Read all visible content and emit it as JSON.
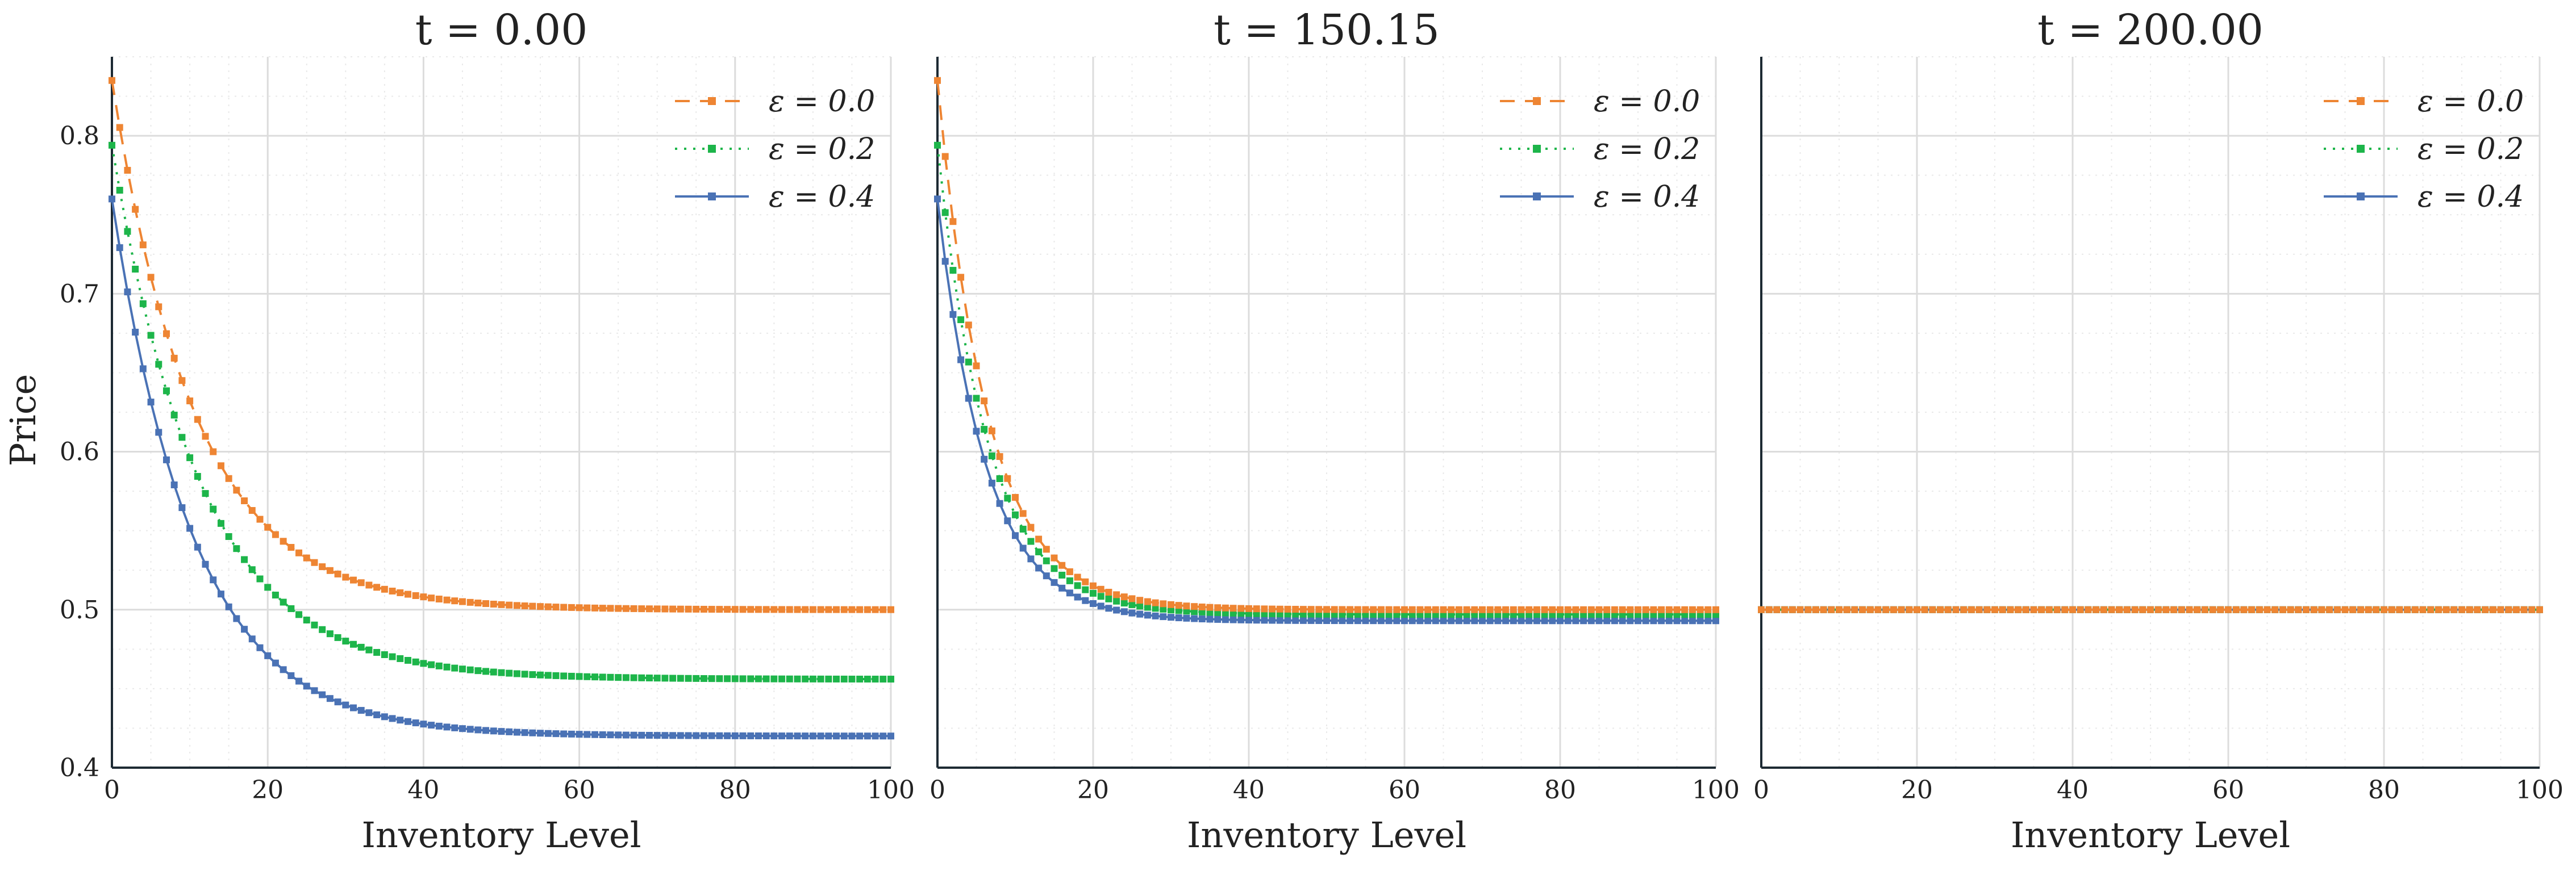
{
  "figure": {
    "ylabel": "Price",
    "colors": {
      "eps_0.0": "#ee8533",
      "eps_0.2": "#1db54a",
      "eps_0.4": "#4a72b5",
      "grid": "#dcdcdc",
      "axis": "#1d2a33"
    }
  },
  "chart_data": [
    {
      "type": "line",
      "title": "t = 0.00",
      "xlabel": "Inventory Level",
      "ylabel": "Price",
      "xlim": [
        0,
        100
      ],
      "ylim": [
        0.4,
        0.85
      ],
      "xticks": [
        "0",
        "20",
        "40",
        "60",
        "80",
        "100"
      ],
      "yticks": [
        "0.4",
        "0.5",
        "0.6",
        "0.7",
        "0.8"
      ],
      "grid": true,
      "legend_position": "top-right",
      "series": [
        {
          "name": "ε = 0.0",
          "style": "dashed",
          "color": "#ee8533",
          "model": {
            "base": 0.5,
            "amp": 0.335,
            "decay": 0.093
          }
        },
        {
          "name": "ε = 0.2",
          "style": "dotted",
          "color": "#1db54a",
          "model": {
            "base": 0.456,
            "amp": 0.338,
            "decay": 0.088
          }
        },
        {
          "name": "ε = 0.4",
          "style": "solid",
          "color": "#4a72b5",
          "model": {
            "base": 0.42,
            "amp": 0.34,
            "decay": 0.095
          }
        }
      ]
    },
    {
      "type": "line",
      "title": "t = 150.15",
      "xlabel": "Inventory Level",
      "ylabel": "",
      "xlim": [
        0,
        100
      ],
      "ylim": [
        0.4,
        0.85
      ],
      "xticks": [
        "0",
        "20",
        "40",
        "60",
        "80",
        "100"
      ],
      "yticks": [],
      "grid": true,
      "legend_position": "top-right",
      "series": [
        {
          "name": "ε = 0.0",
          "style": "dashed",
          "color": "#ee8533",
          "model": {
            "base": 0.5,
            "amp": 0.335,
            "decay": 0.155
          }
        },
        {
          "name": "ε = 0.2",
          "style": "dotted",
          "color": "#1db54a",
          "model": {
            "base": 0.497,
            "amp": 0.297,
            "decay": 0.155
          }
        },
        {
          "name": "ε = 0.4",
          "style": "solid",
          "color": "#4a72b5",
          "model": {
            "base": 0.493,
            "amp": 0.267,
            "decay": 0.16
          }
        }
      ]
    },
    {
      "type": "line",
      "title": "t = 200.00",
      "xlabel": "Inventory Level",
      "ylabel": "",
      "xlim": [
        0,
        100
      ],
      "ylim": [
        0.4,
        0.85
      ],
      "xticks": [
        "0",
        "20",
        "40",
        "60",
        "80",
        "100"
      ],
      "yticks": [],
      "grid": true,
      "legend_position": "top-right",
      "series": [
        {
          "name": "ε = 0.0",
          "style": "dashed",
          "color": "#ee8533",
          "model": {
            "base": 0.5,
            "amp": 0,
            "decay": 0
          }
        },
        {
          "name": "ε = 0.2",
          "style": "dotted",
          "color": "#1db54a",
          "model": {
            "base": 0.5,
            "amp": 0,
            "decay": 0
          }
        },
        {
          "name": "ε = 0.4",
          "style": "solid",
          "color": "#4a72b5",
          "model": {
            "base": 0.5,
            "amp": 0,
            "decay": 0
          }
        }
      ]
    }
  ]
}
